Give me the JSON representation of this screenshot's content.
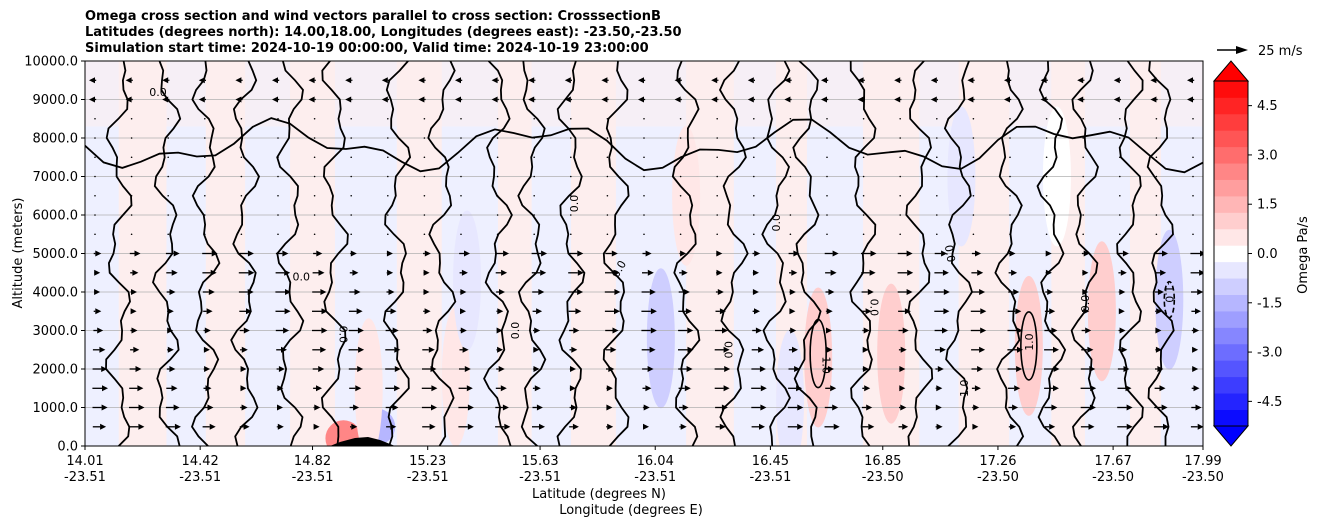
{
  "title_lines": [
    "Omega cross section and wind vectors parallel to cross section: CrosssectionB",
    "Latitudes (degrees north): 14.00,18.00, Longitudes (degrees east): -23.50,-23.50",
    "Simulation start time: 2024-10-19 00:00:00, Valid time: 2024-10-19 23:00:00"
  ],
  "chart_data": {
    "type": "heatmap",
    "subtype": "filled contour with contour lines and wind vectors",
    "ylabel": "Altitude (meters)",
    "xlabel_lines": [
      "Latitude (degrees N)",
      "Longitude (degrees E)"
    ],
    "ylim": [
      0,
      10000
    ],
    "y_ticks": [
      "0.0",
      "1000.0",
      "2000.0",
      "3000.0",
      "4000.0",
      "5000.0",
      "6000.0",
      "7000.0",
      "8000.0",
      "9000.0",
      "10000.0"
    ],
    "x_ticks": [
      {
        "lat": "14.01",
        "lon": "-23.51"
      },
      {
        "lat": "14.42",
        "lon": "-23.51"
      },
      {
        "lat": "14.82",
        "lon": "-23.51"
      },
      {
        "lat": "15.23",
        "lon": "-23.51"
      },
      {
        "lat": "15.63",
        "lon": "-23.51"
      },
      {
        "lat": "16.04",
        "lon": "-23.51"
      },
      {
        "lat": "16.45",
        "lon": "-23.51"
      },
      {
        "lat": "16.85",
        "lon": "-23.50"
      },
      {
        "lat": "17.26",
        "lon": "-23.50"
      },
      {
        "lat": "17.67",
        "lon": "-23.50"
      },
      {
        "lat": "17.99",
        "lon": "-23.50"
      }
    ],
    "grid": "horizontal only",
    "colorbar": {
      "label": "Omega Pa/s",
      "range": [
        -5.25,
        5.25
      ],
      "step": 0.5,
      "extend": "both",
      "ticks": [
        "-4.5",
        "-3.0",
        "-1.5",
        "0.0",
        "1.5",
        "3.0",
        "4.5"
      ],
      "colors_negative": "#0000ff",
      "colors_positive": "#ff0000"
    },
    "quiver_key": "25 m/s",
    "contour_levels": [
      -1.0,
      0.0,
      1.0
    ],
    "omega_anomalies": [
      {
        "lat": 14.93,
        "alt": 200,
        "value": 2.5
      },
      {
        "lat": 15.05,
        "alt": 500,
        "value": -1.5
      },
      {
        "lat": 15.02,
        "alt": 1500,
        "value": 0.6
      },
      {
        "lat": 15.33,
        "alt": 1800,
        "value": 0.7
      },
      {
        "lat": 15.37,
        "alt": 4300,
        "value": -0.6
      },
      {
        "lat": 16.06,
        "alt": 2800,
        "value": -0.8
      },
      {
        "lat": 16.15,
        "alt": 6500,
        "value": 0.5
      },
      {
        "lat": 16.52,
        "alt": 1200,
        "value": -0.5
      },
      {
        "lat": 16.62,
        "alt": 2300,
        "value": 1.2
      },
      {
        "lat": 16.88,
        "alt": 2400,
        "value": 0.8
      },
      {
        "lat": 17.13,
        "alt": 7000,
        "value": -0.4
      },
      {
        "lat": 17.37,
        "alt": 2600,
        "value": 1.2
      },
      {
        "lat": 17.47,
        "alt": 7000,
        "value": 0.2
      },
      {
        "lat": 17.63,
        "alt": 3500,
        "value": 0.8
      },
      {
        "lat": 17.87,
        "alt": 3800,
        "value": -0.9
      }
    ],
    "contour_labels": [
      "0.0",
      "1.0",
      "-1.0"
    ]
  },
  "colors": {
    "negative_base": "#eef0ff",
    "positive_base": "#fdeeee",
    "contour": "#000000",
    "grid": "#b0b0b0"
  }
}
